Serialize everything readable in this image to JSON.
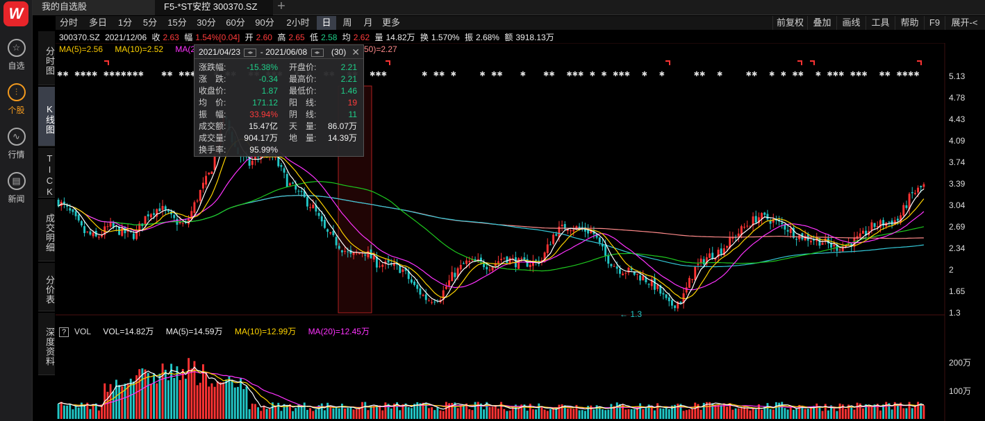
{
  "rail": {
    "logo": "W",
    "items": [
      {
        "label": "自选",
        "icon": "star-icon"
      },
      {
        "label": "个股",
        "icon": "stock-chart-icon"
      },
      {
        "label": "行情",
        "icon": "market-icon"
      },
      {
        "label": "新闻",
        "icon": "news-icon"
      }
    ]
  },
  "tabs": {
    "watchlist": "我的自选股",
    "stock": "F5-*ST安控 300370.SZ",
    "add": "+"
  },
  "periods": [
    "分时",
    "多日",
    "1分",
    "5分",
    "15分",
    "30分",
    "60分",
    "90分",
    "2小时",
    "日",
    "周",
    "月",
    "更多"
  ],
  "active_period": "日",
  "right_tools": [
    "前复权",
    "叠加",
    "画线",
    "工具",
    "帮助",
    "F9",
    "展开-<"
  ],
  "side_tabs": [
    "分时图",
    "K线图",
    "TICK",
    "成交明细",
    "分价表",
    "深度资料"
  ],
  "active_side_tab": "K线图",
  "info": {
    "code": "300370.SZ",
    "date": "2021/12/06",
    "close_label": "收",
    "close": "2.63",
    "change_label": "幅",
    "change": "1.54%[0.04]",
    "open_label": "开",
    "open": "2.60",
    "high_label": "高",
    "high": "2.65",
    "low_label": "低",
    "low": "2.58",
    "avg_label": "均",
    "avg": "2.62",
    "vol_label": "量",
    "vol": "14.82万",
    "turn_label": "换",
    "turn": "1.570%",
    "amp_label": "振",
    "amp": "2.68%",
    "amt_label": "额",
    "amt": "3918.13万"
  },
  "ma": {
    "ma5": "MA(5)=2.56",
    "ma10": "MA(10)=2.52",
    "ma20": "MA(20)",
    "ma250": "50)=2.27"
  },
  "colors": {
    "ma5": "#ffffff",
    "ma10": "#ffd400",
    "ma20": "#ff33ff",
    "ma60": "#1ec81e",
    "ma120": "#34c8d8",
    "ma250": "#ff8a8a",
    "up": "#ff3333",
    "down": "#22c6c6"
  },
  "price_axis": [
    "5.13",
    "4.78",
    "4.43",
    "4.09",
    "3.74",
    "3.39",
    "3.04",
    "2.69",
    "2.34",
    "2",
    "1.65",
    "1.3"
  ],
  "low_marker": "1.3",
  "volume": {
    "help": "?",
    "title": "VOL",
    "vol": "VOL=14.82万",
    "ma5": "MA(5)=14.59万",
    "ma10": "MA(10)=12.99万",
    "ma20": "MA(20)=12.45万",
    "axis": [
      "200万",
      "100万"
    ]
  },
  "popup": {
    "start": "2021/04/23",
    "end": "2021/06/08",
    "count": "(30)",
    "rows": [
      {
        "l1": "涨跌幅:",
        "v1": "-15.38%",
        "c1": "green",
        "l2": "开盘价:",
        "v2": "2.21",
        "c2": "green"
      },
      {
        "l1": "涨　跌:",
        "v1": "-0.34",
        "c1": "green",
        "l2": "最高价:",
        "v2": "2.21",
        "c2": "green"
      },
      {
        "l1": "收盘价:",
        "v1": "1.87",
        "c1": "green",
        "l2": "最低价:",
        "v2": "1.46",
        "c2": "green"
      },
      {
        "l1": "均　价:",
        "v1": "171.12",
        "c1": "green",
        "l2": "阳　线:",
        "v2": "19",
        "c2": "red"
      },
      {
        "l1": "振　幅:",
        "v1": "33.94%",
        "c1": "red",
        "l2": "阴　线:",
        "v2": "11",
        "c2": "green"
      },
      {
        "l1": "成交额:",
        "v1": "15.47亿",
        "c1": "white",
        "l2": "天　量:",
        "v2": "86.07万",
        "c2": "white"
      },
      {
        "l1": "成交量:",
        "v1": "904.17万",
        "c1": "white",
        "l2": "地　量:",
        "v2": "14.39万",
        "c2": "white"
      },
      {
        "l1": "换手率:",
        "v1": "95.99%",
        "c1": "white",
        "l2": "",
        "v2": "",
        "c2": "white"
      }
    ]
  },
  "chart_data": {
    "type": "candlestick",
    "ylim": [
      1.3,
      5.13
    ],
    "close_trend": [
      3.1,
      2.9,
      2.6,
      2.5,
      2.7,
      2.6,
      2.55,
      2.9,
      3.0,
      2.8,
      2.7,
      3.2,
      3.6,
      4.5,
      3.9,
      3.7,
      3.9,
      3.8,
      3.4,
      3.2,
      3.0,
      2.6,
      2.4,
      2.2,
      2.3,
      2.1,
      2.05,
      2.0,
      1.7,
      1.5,
      1.55,
      1.9,
      2.1,
      2.1,
      2.05,
      2.2,
      2.1,
      2.1,
      2.15,
      2.6,
      2.7,
      2.65,
      2.6,
      2.2,
      2.0,
      1.95,
      1.85,
      1.7,
      1.4,
      1.5,
      2.0,
      2.2,
      2.3,
      2.5,
      2.7,
      2.85,
      2.8,
      2.7,
      2.55,
      2.5,
      2.45,
      2.35,
      2.4,
      2.5,
      2.7,
      2.75,
      2.8,
      3.2,
      3.35
    ]
  }
}
